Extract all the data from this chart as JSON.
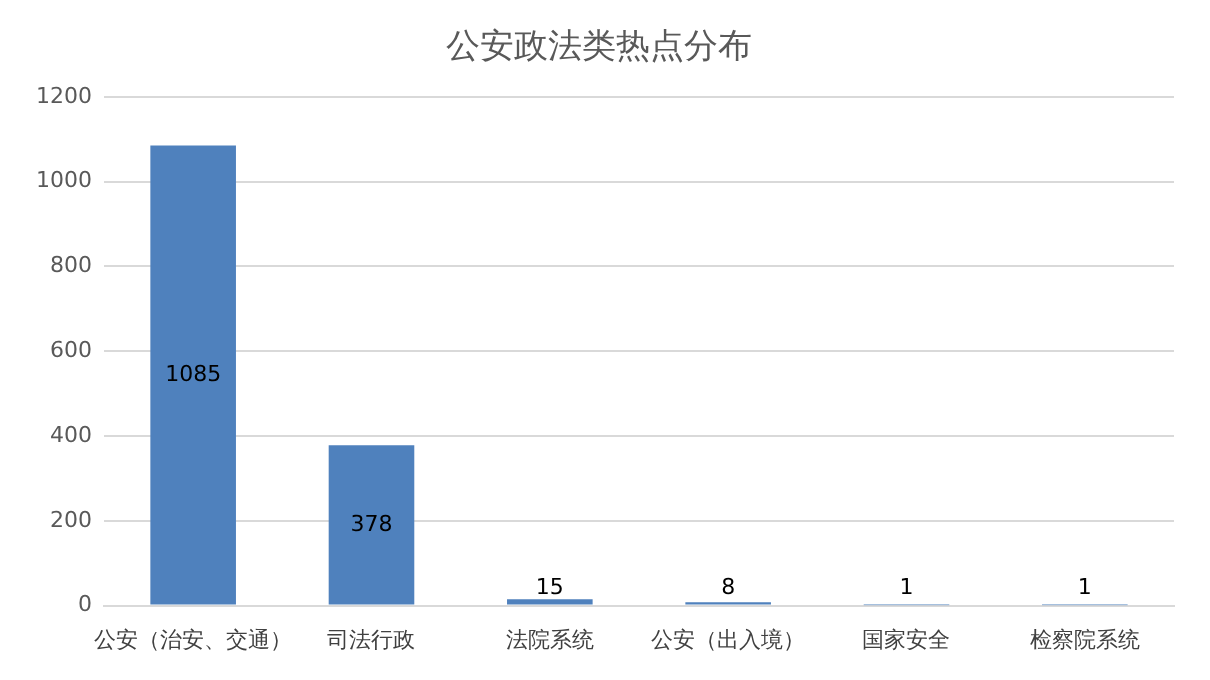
{
  "chart_data": {
    "type": "bar",
    "title": "公安政法类热点分布",
    "categories": [
      "公安（治安、交通）",
      "司法行政",
      "法院系统",
      "公安（出入境）",
      "国家安全",
      "检察院系统"
    ],
    "values": [
      1085,
      378,
      15,
      8,
      1,
      1
    ],
    "color": "#4f81bd",
    "ylim": [
      0,
      1200
    ],
    "yticks": [
      0,
      200,
      400,
      600,
      800,
      1000,
      1200
    ],
    "grid": "y",
    "data_labels": true,
    "legend": false
  }
}
